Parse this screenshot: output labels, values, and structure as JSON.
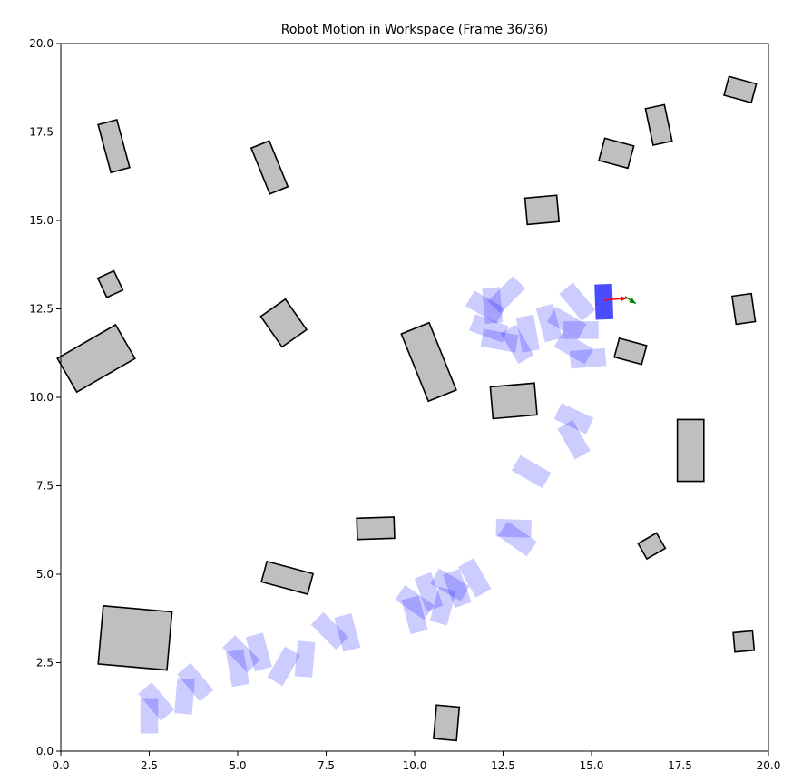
{
  "chart_data": {
    "type": "scatter",
    "title": "Robot Motion in Workspace (Frame 36/36)",
    "xlabel": "",
    "ylabel": "",
    "xlim": [
      0,
      20
    ],
    "ylim": [
      0,
      20
    ],
    "xticks": [
      "0.0",
      "2.5",
      "5.0",
      "7.5",
      "10.0",
      "12.5",
      "15.0",
      "17.5",
      "20.0"
    ],
    "yticks": [
      "0.0",
      "2.5",
      "5.0",
      "7.5",
      "10.0",
      "12.5",
      "15.0",
      "17.5",
      "20.0"
    ],
    "grid": false,
    "colors": {
      "obstacle_fill": "#bfbfbf",
      "obstacle_edge": "#000000",
      "trail": "#0000ff",
      "robot": "#0000ff",
      "heading": "#ff0000",
      "velocity": "#008000"
    },
    "obstacles": [
      {
        "cx": 1.5,
        "cy": 17.1,
        "w": 0.55,
        "h": 1.4,
        "angle": 15
      },
      {
        "cx": 5.9,
        "cy": 16.5,
        "w": 0.55,
        "h": 1.4,
        "angle": 22
      },
      {
        "cx": 1.4,
        "cy": 13.2,
        "w": 0.5,
        "h": 0.6,
        "angle": 25
      },
      {
        "cx": 1.0,
        "cy": 11.1,
        "w": 1.9,
        "h": 1.1,
        "angle": 30
      },
      {
        "cx": 6.3,
        "cy": 12.1,
        "w": 0.85,
        "h": 1.05,
        "angle": 35
      },
      {
        "cx": 10.4,
        "cy": 11.0,
        "w": 0.85,
        "h": 2.05,
        "angle": 22
      },
      {
        "cx": 13.6,
        "cy": 15.3,
        "w": 0.9,
        "h": 0.75,
        "angle": 5
      },
      {
        "cx": 15.7,
        "cy": 16.9,
        "w": 0.85,
        "h": 0.65,
        "angle": -15
      },
      {
        "cx": 16.9,
        "cy": 17.7,
        "w": 0.55,
        "h": 1.05,
        "angle": 12
      },
      {
        "cx": 19.2,
        "cy": 18.7,
        "w": 0.8,
        "h": 0.55,
        "angle": -15
      },
      {
        "cx": 19.3,
        "cy": 12.5,
        "w": 0.55,
        "h": 0.8,
        "angle": 8
      },
      {
        "cx": 16.1,
        "cy": 11.3,
        "w": 0.8,
        "h": 0.55,
        "angle": -15
      },
      {
        "cx": 12.8,
        "cy": 9.9,
        "w": 1.25,
        "h": 0.9,
        "angle": 5
      },
      {
        "cx": 17.8,
        "cy": 8.5,
        "w": 0.75,
        "h": 1.75,
        "angle": 0
      },
      {
        "cx": 8.9,
        "cy": 6.3,
        "w": 1.05,
        "h": 0.6,
        "angle": 2
      },
      {
        "cx": 6.4,
        "cy": 4.9,
        "w": 1.35,
        "h": 0.6,
        "angle": -15
      },
      {
        "cx": 2.1,
        "cy": 3.2,
        "w": 1.95,
        "h": 1.65,
        "angle": -5
      },
      {
        "cx": 16.7,
        "cy": 5.8,
        "w": 0.6,
        "h": 0.5,
        "angle": 30
      },
      {
        "cx": 19.3,
        "cy": 3.1,
        "w": 0.55,
        "h": 0.55,
        "angle": 5
      },
      {
        "cx": 10.9,
        "cy": 0.8,
        "w": 0.65,
        "h": 0.95,
        "angle": -5
      }
    ],
    "trail": [
      {
        "x": 2.5,
        "y": 1.0,
        "w": 0.5,
        "h": 1.0,
        "angle": 0
      },
      {
        "x": 2.7,
        "y": 1.4,
        "w": 0.5,
        "h": 1.0,
        "angle": 40
      },
      {
        "x": 3.5,
        "y": 1.55,
        "w": 0.5,
        "h": 1.0,
        "angle": -5
      },
      {
        "x": 3.8,
        "y": 1.95,
        "w": 0.5,
        "h": 1.0,
        "angle": 40
      },
      {
        "x": 5.0,
        "y": 2.35,
        "w": 0.5,
        "h": 1.0,
        "angle": 10
      },
      {
        "x": 5.1,
        "y": 2.75,
        "w": 0.5,
        "h": 1.0,
        "angle": 45
      },
      {
        "x": 5.6,
        "y": 2.8,
        "w": 0.5,
        "h": 1.0,
        "angle": 15
      },
      {
        "x": 6.3,
        "y": 2.4,
        "w": 0.5,
        "h": 1.0,
        "angle": -30
      },
      {
        "x": 6.9,
        "y": 2.6,
        "w": 0.5,
        "h": 1.0,
        "angle": -5
      },
      {
        "x": 7.6,
        "y": 3.4,
        "w": 0.5,
        "h": 1.0,
        "angle": 45
      },
      {
        "x": 8.1,
        "y": 3.35,
        "w": 0.5,
        "h": 1.0,
        "angle": 15
      },
      {
        "x": 10.0,
        "y": 4.2,
        "w": 0.5,
        "h": 1.0,
        "angle": 55
      },
      {
        "x": 10.0,
        "y": 3.85,
        "w": 0.5,
        "h": 1.0,
        "angle": 15
      },
      {
        "x": 10.4,
        "y": 4.5,
        "w": 0.5,
        "h": 1.0,
        "angle": 20
      },
      {
        "x": 10.8,
        "y": 4.1,
        "w": 0.5,
        "h": 1.0,
        "angle": -15
      },
      {
        "x": 11.0,
        "y": 4.7,
        "w": 0.5,
        "h": 1.0,
        "angle": 60
      },
      {
        "x": 11.2,
        "y": 4.6,
        "w": 0.5,
        "h": 1.0,
        "angle": 20
      },
      {
        "x": 11.7,
        "y": 4.9,
        "w": 0.5,
        "h": 1.0,
        "angle": 30
      },
      {
        "x": 12.8,
        "y": 6.3,
        "w": 0.5,
        "h": 1.0,
        "angle": 88
      },
      {
        "x": 12.9,
        "y": 6.0,
        "w": 0.5,
        "h": 1.0,
        "angle": 55
      },
      {
        "x": 13.3,
        "y": 7.9,
        "w": 0.5,
        "h": 1.0,
        "angle": 60
      },
      {
        "x": 14.5,
        "y": 8.8,
        "w": 0.5,
        "h": 1.0,
        "angle": 30
      },
      {
        "x": 14.5,
        "y": 9.4,
        "w": 0.5,
        "h": 1.0,
        "angle": 65
      },
      {
        "x": 12.0,
        "y": 12.55,
        "w": 0.5,
        "h": 1.0,
        "angle": 60
      },
      {
        "x": 12.2,
        "y": 12.6,
        "w": 0.5,
        "h": 1.0,
        "angle": 5
      },
      {
        "x": 12.6,
        "y": 12.9,
        "w": 0.5,
        "h": 1.0,
        "angle": -45
      },
      {
        "x": 12.1,
        "y": 11.95,
        "w": 0.5,
        "h": 1.0,
        "angle": 70
      },
      {
        "x": 12.4,
        "y": 11.6,
        "w": 0.5,
        "h": 1.0,
        "angle": 80
      },
      {
        "x": 12.9,
        "y": 11.5,
        "w": 0.5,
        "h": 1.0,
        "angle": 30
      },
      {
        "x": 13.2,
        "y": 11.8,
        "w": 0.5,
        "h": 1.0,
        "angle": 10
      },
      {
        "x": 13.8,
        "y": 12.1,
        "w": 0.5,
        "h": 1.0,
        "angle": 15
      },
      {
        "x": 14.3,
        "y": 12.1,
        "w": 0.5,
        "h": 1.0,
        "angle": 60
      },
      {
        "x": 14.6,
        "y": 12.7,
        "w": 0.5,
        "h": 1.0,
        "angle": 40
      },
      {
        "x": 14.7,
        "y": 11.9,
        "w": 0.5,
        "h": 1.0,
        "angle": 90
      },
      {
        "x": 14.5,
        "y": 11.4,
        "w": 0.5,
        "h": 1.0,
        "angle": 60
      },
      {
        "x": 14.9,
        "y": 11.1,
        "w": 0.5,
        "h": 1.0,
        "angle": 95
      }
    ],
    "robot": {
      "x": 15.35,
      "y": 12.7,
      "w": 0.5,
      "h": 1.0,
      "angle": 2
    },
    "heading_arrow": {
      "x": 15.35,
      "y": 12.75,
      "dx": 0.65,
      "dy": 0.05
    },
    "velocity_arrow": {
      "x": 15.95,
      "y": 12.85,
      "dx": 0.3,
      "dy": -0.2
    }
  }
}
